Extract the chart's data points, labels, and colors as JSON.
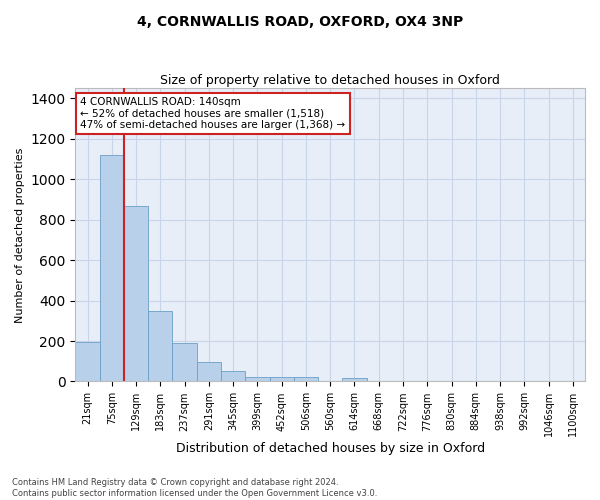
{
  "title": "4, CORNWALLIS ROAD, OXFORD, OX4 3NP",
  "subtitle": "Size of property relative to detached houses in Oxford",
  "xlabel": "Distribution of detached houses by size in Oxford",
  "ylabel": "Number of detached properties",
  "footer_line1": "Contains HM Land Registry data © Crown copyright and database right 2024.",
  "footer_line2": "Contains public sector information licensed under the Open Government Licence v3.0.",
  "categories": [
    "21sqm",
    "75sqm",
    "129sqm",
    "183sqm",
    "237sqm",
    "291sqm",
    "345sqm",
    "399sqm",
    "452sqm",
    "506sqm",
    "560sqm",
    "614sqm",
    "668sqm",
    "722sqm",
    "776sqm",
    "830sqm",
    "884sqm",
    "938sqm",
    "992sqm",
    "1046sqm",
    "1100sqm"
  ],
  "values": [
    193,
    1118,
    868,
    350,
    190,
    95,
    50,
    22,
    20,
    20,
    0,
    15,
    0,
    0,
    0,
    0,
    0,
    0,
    0,
    0,
    0
  ],
  "bar_color": "#b8d0ea",
  "bar_edge_color": "#6a9fc8",
  "grid_color": "#c8d4e8",
  "background_color": "#e8eef8",
  "annotation_line1": "4 CORNWALLIS ROAD: 140sqm",
  "annotation_line2": "← 52% of detached houses are smaller (1,518)",
  "annotation_line3": "47% of semi-detached houses are larger (1,368) →",
  "vline_color": "#cc2222",
  "annotation_box_facecolor": "#ffffff",
  "annotation_box_edgecolor": "#cc2222",
  "ylim": [
    0,
    1450
  ],
  "yticks": [
    0,
    200,
    400,
    600,
    800,
    1000,
    1200,
    1400
  ],
  "title_fontsize": 10,
  "subtitle_fontsize": 9,
  "ylabel_fontsize": 8,
  "xlabel_fontsize": 9,
  "tick_fontsize": 7
}
